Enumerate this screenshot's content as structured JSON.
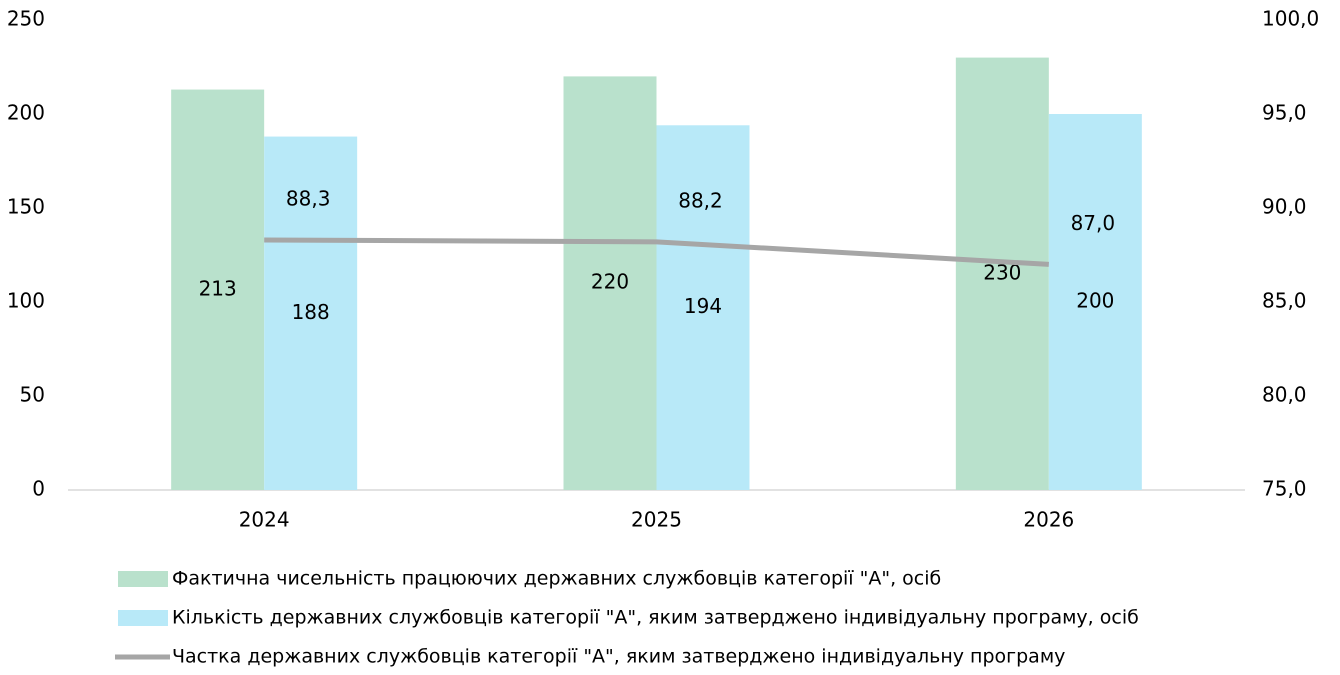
{
  "chart_data": {
    "type": "bar",
    "categories": [
      "2024",
      "2025",
      "2026"
    ],
    "series": [
      {
        "name": "Фактична чисельність  працюючих державних службовців категорії \"А\", осіб",
        "type": "bar",
        "color": "#b9e1cc",
        "values": [
          213,
          220,
          230
        ]
      },
      {
        "name": "Кількість державних службовців категорії \"А\", яким затверджено індивідуальну програму, осіб",
        "type": "bar",
        "color": "#b8e9f8",
        "values": [
          188,
          194,
          200
        ]
      },
      {
        "name": "Частка державних службовців категорії \"А\", яким затверджено індивідуальну програму",
        "type": "line",
        "axis": "y2",
        "color": "#a6a6a6",
        "values": [
          88.3,
          88.2,
          87.0
        ],
        "value_labels": [
          "88,3",
          "88,2",
          "87,0"
        ]
      }
    ],
    "ylim": [
      0,
      250
    ],
    "yticks": [
      0,
      50,
      100,
      150,
      200,
      250
    ],
    "y2lim": [
      75,
      100
    ],
    "y2ticks": [
      {
        "value": 75,
        "label": "75,0"
      },
      {
        "value": 80,
        "label": "80,0"
      },
      {
        "value": 85,
        "label": "85,0"
      },
      {
        "value": 90,
        "label": "90,0"
      },
      {
        "value": 95,
        "label": "95,0"
      },
      {
        "value": 100,
        "label": "100,0"
      }
    ],
    "legend": "bottom"
  }
}
